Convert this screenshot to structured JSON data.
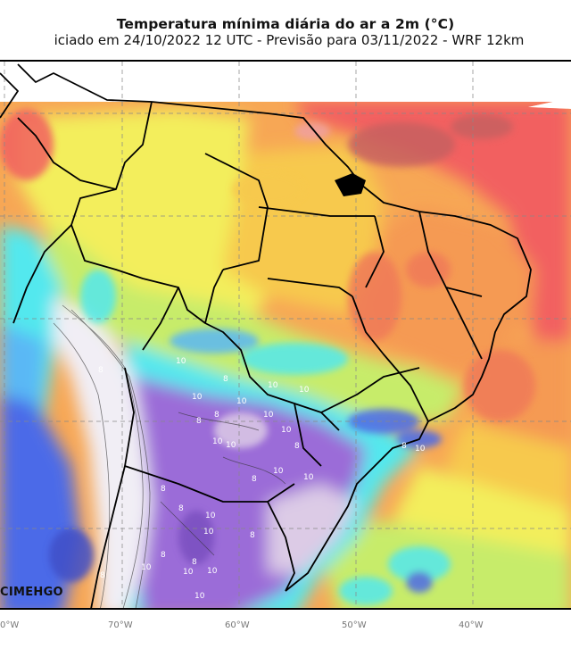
{
  "header": {
    "title": "Temperatura mínima diária do ar a 2m (°C)",
    "subtitle": "iciado em 24/10/2022 12 UTC - Previsão para 03/11/2022 - WRF 12km"
  },
  "logo_text": "CIMEHGO",
  "longitude_labels": [
    "0°W",
    "70°W",
    "60°W",
    "50°W",
    "40°W"
  ],
  "contour_labels": [
    "10",
    "8",
    "10",
    "8",
    "10",
    "10",
    "10",
    "8",
    "10",
    "10",
    "10",
    "10",
    "8",
    "8",
    "10",
    "10",
    "8",
    "10",
    "10",
    "8",
    "10",
    "8",
    "10",
    "8",
    "10",
    "8",
    "8",
    "10",
    "8",
    "10",
    "8"
  ],
  "colors": {
    "hot": "#f26161",
    "warm": "#f59a52",
    "mild": "#f7c94e",
    "yellow": "#f3ee5c",
    "lime": "#c7ec6a",
    "cyan": "#52e8ee",
    "sky": "#5ab8f5",
    "blue": "#4c6ae8",
    "purple": "#9b6cd8",
    "lilac": "#dccbe6",
    "white_cold": "#f1eef5"
  }
}
